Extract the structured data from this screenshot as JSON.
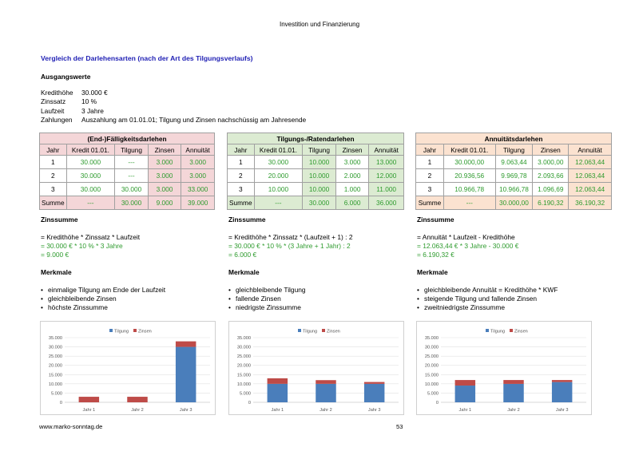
{
  "header": "Investition und Finanzierung",
  "title": "Vergleich der Darlehensarten (nach der Art des Tilgungsverlaufs)",
  "section": "Ausgangswerte",
  "inputs": [
    {
      "k": "Kredithöhe",
      "v": "30.000 €"
    },
    {
      "k": "Zinssatz",
      "v": "10 %"
    },
    {
      "k": "Laufzeit",
      "v": "3 Jahre"
    },
    {
      "k": "Zahlungen",
      "v": "Auszahlung am 01.01.01; Tilgung und Zinsen nachschüssig am Jahresende"
    }
  ],
  "columns": [
    "Jahr",
    "Kredit 01.01.",
    "Tilgung",
    "Zinsen",
    "Annuität"
  ],
  "tables": [
    {
      "title": "(End-)Fälligkeitsdarlehen",
      "fill": "#f4d6d8",
      "rows": [
        [
          "1",
          "30.000",
          "---",
          "3.000",
          "3.000"
        ],
        [
          "2",
          "30.000",
          "---",
          "3.000",
          "3.000"
        ],
        [
          "3",
          "30.000",
          "30.000",
          "3.000",
          "33.000"
        ],
        [
          "Summe",
          "---",
          "30.000",
          "9.000",
          "39.000"
        ]
      ]
    },
    {
      "title": "Tilgungs-/Ratendarlehen",
      "fill": "#dcebd2",
      "rows": [
        [
          "1",
          "30.000",
          "10.000",
          "3.000",
          "13.000"
        ],
        [
          "2",
          "20.000",
          "10.000",
          "2.000",
          "12.000"
        ],
        [
          "3",
          "10.000",
          "10.000",
          "1.000",
          "11.000"
        ],
        [
          "Summe",
          "---",
          "30.000",
          "6.000",
          "36.000"
        ]
      ]
    },
    {
      "title": "Annuitätsdarlehen",
      "fill": "#fbe2d0",
      "rows": [
        [
          "1",
          "30.000,00",
          "9.063,44",
          "3.000,00",
          "12.063,44"
        ],
        [
          "2",
          "20.936,56",
          "9.969,78",
          "2.093,66",
          "12.063,44"
        ],
        [
          "3",
          "10.966,78",
          "10.966,78",
          "1.096,69",
          "12.063,44"
        ],
        [
          "Summe",
          "---",
          "30.000,00",
          "6.190,32",
          "36.190,32"
        ]
      ]
    }
  ],
  "zins_label": "Zinssumme",
  "merkmale_label": "Merkmale",
  "blocks": [
    {
      "formula": "= Kredithöhe * Zinssatz * Laufzeit",
      "calc": "= 30.000 € * 10 % * 3 Jahre",
      "result": "= 9.000 €",
      "merkmale": [
        "einmalige Tilgung am Ende der Laufzeit",
        "gleichbleibende Zinsen",
        "höchste Zinssumme"
      ]
    },
    {
      "formula": "= Kredithöhe * Zinssatz * (Laufzeit + 1) : 2",
      "calc": "= 30.000 € * 10 % * (3 Jahre + 1 Jahr) : 2",
      "result": "= 6.000 €",
      "merkmale": [
        "gleichbleibende Tilgung",
        "fallende Zinsen",
        "niedrigste Zinssumme"
      ]
    },
    {
      "formula": "= Annuität * Laufzeit - Kredithöhe",
      "calc": "= 12.063,44 € * 3 Jahre - 30.000 €",
      "result": "= 6.190,32 €",
      "merkmale": [
        "gleichbleibende Annuität = Kredithöhe * KWF",
        "steigende Tilgung und fallende Zinsen",
        "zweitniedrigste Zinssumme"
      ]
    }
  ],
  "chart_data": [
    {
      "type": "bar",
      "stacked": true,
      "categories": [
        "Jahr 1",
        "Jahr 2",
        "Jahr 3"
      ],
      "ylim": [
        0,
        35000
      ],
      "yticks": [
        "0",
        "5.000",
        "10.000",
        "15.000",
        "20.000",
        "25.000",
        "30.000",
        "35.000"
      ],
      "series": [
        {
          "name": "Tilgung",
          "color": "#4a7ebb",
          "values": [
            0,
            0,
            30000
          ]
        },
        {
          "name": "Zinsen",
          "color": "#be4b48",
          "values": [
            3000,
            3000,
            3000
          ]
        }
      ],
      "legend": "top"
    },
    {
      "type": "bar",
      "stacked": true,
      "categories": [
        "Jahr 1",
        "Jahr 2",
        "Jahr 3"
      ],
      "ylim": [
        0,
        35000
      ],
      "yticks": [
        "0",
        "5.000",
        "10.000",
        "15.000",
        "20.000",
        "25.000",
        "30.000",
        "35.000"
      ],
      "series": [
        {
          "name": "Tilgung",
          "color": "#4a7ebb",
          "values": [
            10000,
            10000,
            10000
          ]
        },
        {
          "name": "Zinsen",
          "color": "#be4b48",
          "values": [
            3000,
            2000,
            1000
          ]
        }
      ],
      "legend": "top"
    },
    {
      "type": "bar",
      "stacked": true,
      "categories": [
        "Jahr 1",
        "Jahr 2",
        "Jahr 3"
      ],
      "ylim": [
        0,
        35000
      ],
      "yticks": [
        "0",
        "5.000",
        "10.000",
        "15.000",
        "20.000",
        "25.000",
        "30.000",
        "35.000"
      ],
      "series": [
        {
          "name": "Tilgung",
          "color": "#4a7ebb",
          "values": [
            9063.44,
            9969.78,
            10966.78
          ]
        },
        {
          "name": "Zinsen",
          "color": "#be4b48",
          "values": [
            3000,
            2093.66,
            1096.69
          ]
        }
      ],
      "legend": "top"
    }
  ],
  "footer": {
    "left": "www.marko-sonntag.de",
    "right": "53"
  }
}
